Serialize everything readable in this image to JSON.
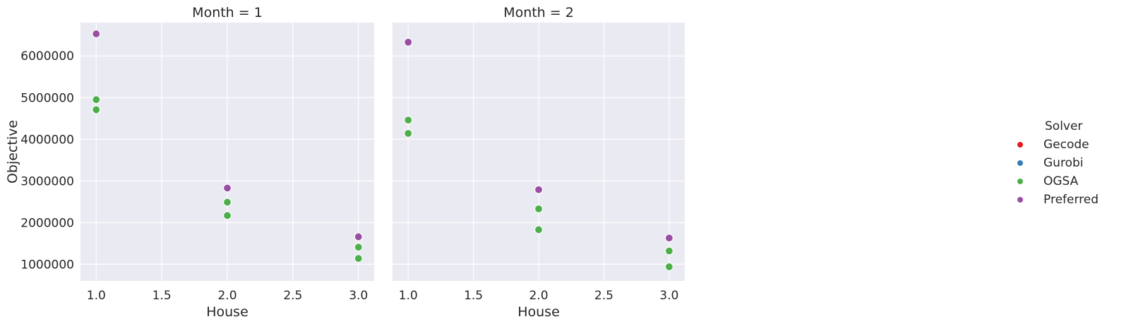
{
  "chart_data": {
    "type": "scatter",
    "xlabel": "House",
    "ylabel": "Objective",
    "xlim": [
      0.88,
      3.12
    ],
    "ylim": [
      600000,
      6800000
    ],
    "xticks": [
      1.0,
      1.5,
      2.0,
      2.5,
      3.0
    ],
    "yticks": [
      1000000,
      2000000,
      3000000,
      4000000,
      5000000,
      6000000
    ],
    "xtick_labels": [
      "1.0",
      "1.5",
      "2.0",
      "2.5",
      "3.0"
    ],
    "ytick_labels": [
      "1000000",
      "2000000",
      "3000000",
      "4000000",
      "5000000",
      "6000000"
    ],
    "grid": true,
    "legend": {
      "title": "Solver",
      "placement": "right",
      "entries": [
        {
          "name": "Gecode",
          "color": "#e41a1c"
        },
        {
          "name": "Gurobi",
          "color": "#377eb8"
        },
        {
          "name": "OGSA",
          "color": "#4daf4a"
        },
        {
          "name": "Preferred",
          "color": "#984ea3"
        }
      ]
    },
    "facets": [
      {
        "title": "Month = 1",
        "series": [
          {
            "name": "Gecode",
            "points": []
          },
          {
            "name": "Gurobi",
            "points": [
              [
                1.0,
                4680000
              ]
            ]
          },
          {
            "name": "OGSA",
            "points": [
              [
                1.0,
                4950000
              ],
              [
                1.0,
                4710000
              ],
              [
                2.0,
                2490000
              ],
              [
                2.0,
                2170000
              ],
              [
                3.0,
                1410000
              ],
              [
                3.0,
                1140000
              ]
            ]
          },
          {
            "name": "Preferred",
            "points": [
              [
                1.0,
                6530000
              ],
              [
                2.0,
                2830000
              ],
              [
                3.0,
                1660000
              ]
            ]
          }
        ]
      },
      {
        "title": "Month = 2",
        "series": [
          {
            "name": "Gecode",
            "points": []
          },
          {
            "name": "Gurobi",
            "points": []
          },
          {
            "name": "OGSA",
            "points": [
              [
                1.0,
                4460000
              ],
              [
                1.0,
                4140000
              ],
              [
                2.0,
                2330000
              ],
              [
                2.0,
                1830000
              ],
              [
                3.0,
                1320000
              ],
              [
                3.0,
                940000
              ]
            ]
          },
          {
            "name": "Preferred",
            "points": [
              [
                1.0,
                6330000
              ],
              [
                2.0,
                2790000
              ],
              [
                3.0,
                1630000
              ]
            ]
          }
        ]
      }
    ]
  }
}
